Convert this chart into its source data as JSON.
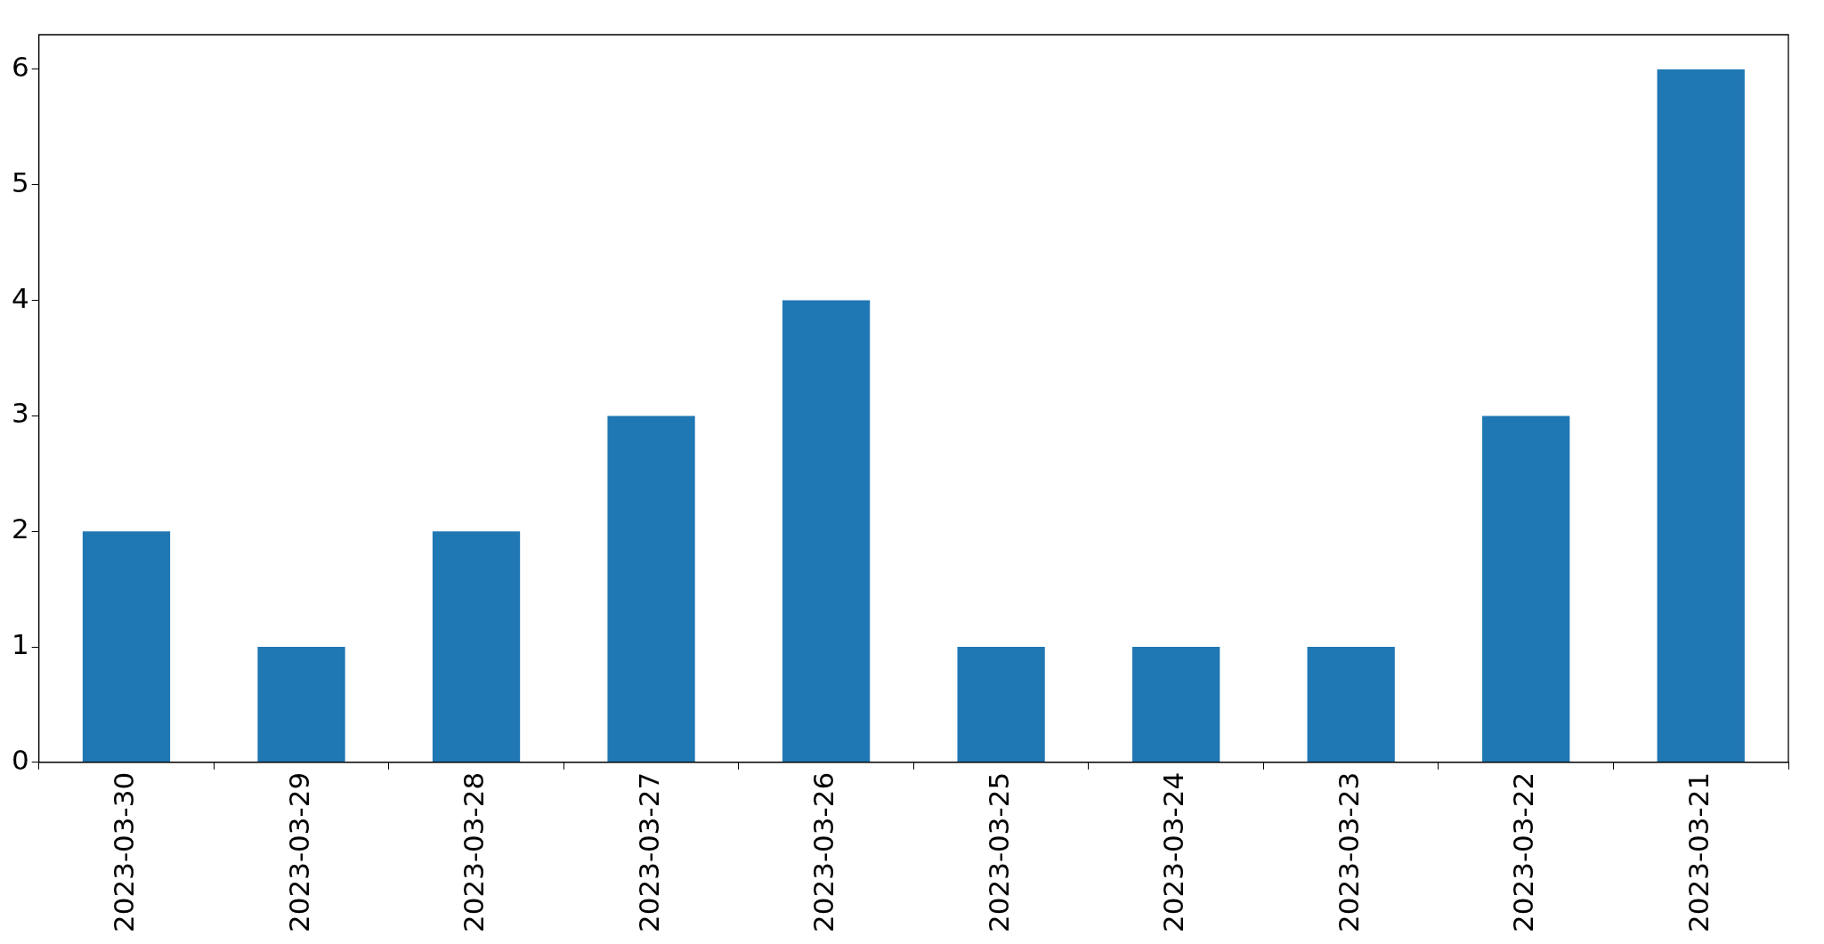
{
  "chart_data": {
    "type": "bar",
    "categories": [
      "2023-03-30",
      "2023-03-29",
      "2023-03-28",
      "2023-03-27",
      "2023-03-26",
      "2023-03-25",
      "2023-03-24",
      "2023-03-23",
      "2023-03-22",
      "2023-03-21"
    ],
    "values": [
      2,
      1,
      2,
      3,
      4,
      1,
      1,
      1,
      3,
      6
    ],
    "color": "#1f77b4",
    "ylim": [
      0,
      6.3
    ],
    "yticks": [
      0,
      1,
      2,
      3,
      4,
      5,
      6
    ],
    "grid": false,
    "legend": false
  }
}
